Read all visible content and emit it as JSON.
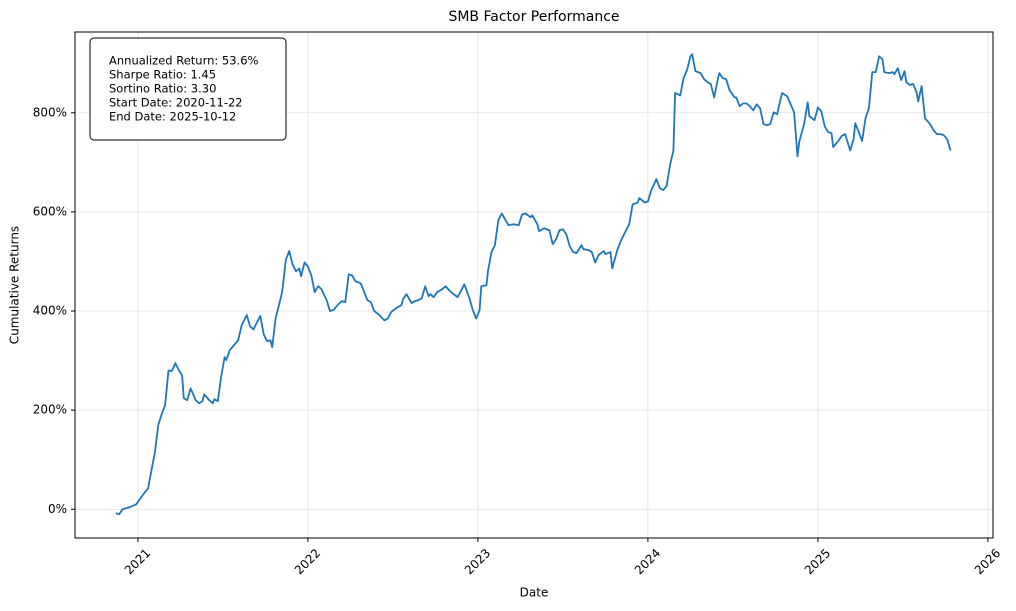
{
  "chart_data": {
    "type": "line",
    "title": "SMB Factor Performance",
    "x_label": "Date",
    "y_label": "Cumulative Returns",
    "annotations": [
      "Annualized Return: 53.6%",
      "Sharpe Ratio: 1.45",
      "Sortino Ratio: 3.30",
      "Start Date: 2020-11-22",
      "End Date: 2025-10-12"
    ],
    "color": "#1f77b4",
    "grid": true,
    "xlim": [
      2020.63,
      2026.03
    ],
    "xticks": [
      2021,
      2022,
      2023,
      2024,
      2025,
      2026
    ],
    "ylim": [
      -58,
      963
    ],
    "yticks": [
      {
        "value": 0,
        "label": "0%"
      },
      {
        "value": 200,
        "label": "200%"
      },
      {
        "value": 400,
        "label": "400%"
      },
      {
        "value": 600,
        "label": "600%"
      },
      {
        "value": 800,
        "label": "800%"
      }
    ],
    "x": [
      2020.87,
      2020.89,
      2020.91,
      2020.95,
      2020.99,
      2021.04,
      2021.06,
      2021.08,
      2021.1,
      2021.12,
      2021.14,
      2021.16,
      2021.18,
      2021.2,
      2021.22,
      2021.24,
      2021.26,
      2021.27,
      2021.29,
      2021.31,
      2021.34,
      2021.36,
      2021.38,
      2021.39,
      2021.42,
      2021.44,
      2021.45,
      2021.47,
      2021.49,
      2021.51,
      2021.52,
      2021.54,
      2021.56,
      2021.59,
      2021.61,
      2021.64,
      2021.66,
      2021.68,
      2021.7,
      2021.72,
      2021.74,
      2021.76,
      2021.78,
      2021.79,
      2021.81,
      2021.84,
      2021.85,
      2021.87,
      2021.89,
      2021.91,
      2021.93,
      2021.95,
      2021.96,
      2021.98,
      2022.0,
      2022.02,
      2022.04,
      2022.06,
      2022.08,
      2022.11,
      2022.13,
      2022.15,
      2022.18,
      2022.2,
      2022.22,
      2022.24,
      2022.26,
      2022.28,
      2022.31,
      2022.32,
      2022.35,
      2022.37,
      2022.39,
      2022.42,
      2022.45,
      2022.47,
      2022.49,
      2022.52,
      2022.55,
      2022.56,
      2022.58,
      2022.61,
      2022.63,
      2022.65,
      2022.67,
      2022.69,
      2022.71,
      2022.72,
      2022.74,
      2022.76,
      2022.79,
      2022.81,
      2022.83,
      2022.85,
      2022.88,
      2022.9,
      2022.92,
      2022.95,
      2022.97,
      2022.99,
      2023.01,
      2023.02,
      2023.05,
      2023.06,
      2023.08,
      2023.1,
      2023.12,
      2023.14,
      2023.16,
      2023.18,
      2023.21,
      2023.24,
      2023.26,
      2023.28,
      2023.31,
      2023.32,
      2023.35,
      2023.36,
      2023.39,
      2023.42,
      2023.44,
      2023.46,
      2023.48,
      2023.5,
      2023.52,
      2023.54,
      2023.56,
      2023.58,
      2023.61,
      2023.62,
      2023.65,
      2023.67,
      2023.69,
      2023.71,
      2023.74,
      2023.75,
      2023.78,
      2023.79,
      2023.82,
      2023.84,
      2023.86,
      2023.89,
      2023.91,
      2023.94,
      2023.95,
      2023.98,
      2024.0,
      2024.02,
      2024.05,
      2024.07,
      2024.09,
      2024.11,
      2024.13,
      2024.15,
      2024.16,
      2024.19,
      2024.21,
      2024.23,
      2024.25,
      2024.26,
      2024.28,
      2024.31,
      2024.33,
      2024.35,
      2024.37,
      2024.39,
      2024.41,
      2024.42,
      2024.44,
      2024.46,
      2024.48,
      2024.51,
      2024.52,
      2024.54,
      2024.56,
      2024.58,
      2024.6,
      2024.62,
      2024.64,
      2024.66,
      2024.68,
      2024.7,
      2024.72,
      2024.74,
      2024.76,
      2024.78,
      2024.79,
      2024.82,
      2024.84,
      2024.86,
      2024.88,
      2024.89,
      2024.92,
      2024.94,
      2024.95,
      2024.98,
      2025.0,
      2025.02,
      2025.04,
      2025.06,
      2025.08,
      2025.09,
      2025.12,
      2025.14,
      2025.16,
      2025.19,
      2025.21,
      2025.22,
      2025.24,
      2025.26,
      2025.28,
      2025.3,
      2025.32,
      2025.34,
      2025.36,
      2025.38,
      2025.39,
      2025.42,
      2025.44,
      2025.45,
      2025.47,
      2025.49,
      2025.51,
      2025.52,
      2025.54,
      2025.56,
      2025.58,
      2025.59,
      2025.61,
      2025.63,
      2025.65,
      2025.66,
      2025.68,
      2025.7,
      2025.72,
      2025.74,
      2025.76,
      2025.78
    ],
    "values": [
      -8,
      -10,
      0,
      4,
      10,
      34,
      42,
      79,
      115,
      170,
      192,
      210,
      280,
      279,
      295,
      281,
      270,
      224,
      220,
      244,
      220,
      214,
      218,
      232,
      220,
      214,
      222,
      218,
      268,
      307,
      301,
      321,
      329,
      341,
      371,
      392,
      369,
      363,
      377,
      390,
      353,
      339,
      341,
      327,
      385,
      426,
      442,
      503,
      521,
      494,
      480,
      486,
      470,
      498,
      490,
      472,
      438,
      450,
      444,
      422,
      400,
      402,
      414,
      420,
      418,
      474,
      472,
      460,
      456,
      448,
      422,
      418,
      400,
      392,
      381,
      385,
      398,
      406,
      412,
      424,
      434,
      416,
      420,
      422,
      426,
      450,
      430,
      434,
      428,
      438,
      444,
      450,
      442,
      436,
      428,
      440,
      454,
      426,
      402,
      385,
      402,
      450,
      452,
      482,
      519,
      533,
      583,
      597,
      585,
      573,
      575,
      573,
      595,
      597,
      589,
      593,
      575,
      561,
      567,
      563,
      535,
      545,
      563,
      565,
      555,
      531,
      519,
      517,
      533,
      525,
      523,
      519,
      498,
      513,
      521,
      515,
      519,
      486,
      523,
      541,
      555,
      575,
      615,
      619,
      628,
      619,
      621,
      644,
      666,
      648,
      644,
      652,
      694,
      724,
      840,
      835,
      870,
      886,
      914,
      918,
      884,
      880,
      868,
      862,
      858,
      831,
      866,
      880,
      870,
      868,
      846,
      831,
      831,
      813,
      819,
      819,
      813,
      805,
      817,
      809,
      777,
      775,
      777,
      801,
      797,
      827,
      840,
      833,
      817,
      801,
      712,
      741,
      779,
      821,
      793,
      785,
      811,
      803,
      773,
      761,
      759,
      731,
      743,
      753,
      757,
      724,
      747,
      779,
      761,
      743,
      789,
      809,
      882,
      882,
      914,
      908,
      882,
      880,
      882,
      878,
      890,
      866,
      884,
      862,
      856,
      858,
      842,
      823,
      854,
      789,
      781,
      777,
      765,
      757,
      757,
      755,
      747,
      724
    ]
  }
}
